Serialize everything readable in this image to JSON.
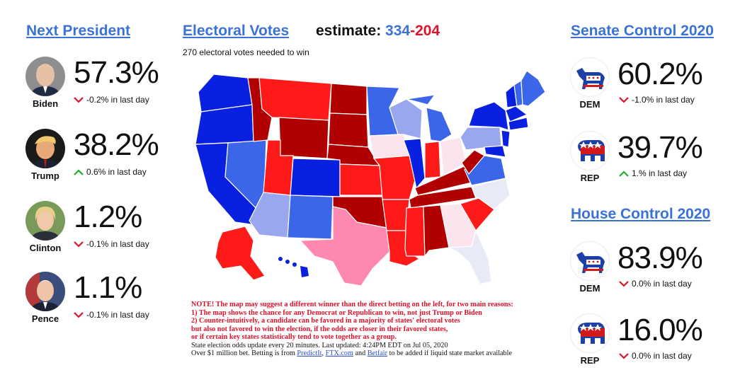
{
  "headers": {
    "next_president": "Next President",
    "electoral_votes": "Electoral Votes",
    "estimate_label": "estimate:",
    "estimate_dem": "334",
    "estimate_dash": "-",
    "estimate_rep": "204",
    "needed": "270 electoral votes needed to win",
    "senate": "Senate Control 2020",
    "house": "House Control 2020"
  },
  "candidates": [
    {
      "name": "Biden",
      "pct": "57.3%",
      "change": "-0.2% in last day",
      "direction": "down"
    },
    {
      "name": "Trump",
      "pct": "38.2%",
      "change": "0.6% in last day",
      "direction": "up"
    },
    {
      "name": "Clinton",
      "pct": "1.2%",
      "change": "-0.1% in last day",
      "direction": "down"
    },
    {
      "name": "Pence",
      "pct": "1.1%",
      "change": "-0.1% in last day",
      "direction": "down"
    }
  ],
  "senate": [
    {
      "party": "DEM",
      "pct": "60.2%",
      "change": "-1.0% in last day",
      "direction": "down"
    },
    {
      "party": "REP",
      "pct": "39.7%",
      "change": "1.% in last day",
      "direction": "up"
    }
  ],
  "house": [
    {
      "party": "DEM",
      "pct": "83.9%",
      "change": "0.0% in last day",
      "direction": "down"
    },
    {
      "party": "REP",
      "pct": "16.0%",
      "change": "0.0% in last day",
      "direction": "down"
    }
  ],
  "note": {
    "line1": "NOTE! The map may suggest a different winner than the direct betting on the left, for two main reasons:",
    "line2": "1) The map shows the chance for any Democrat or Republican to win, not just Trump or Biden",
    "line3": "2) Counter-intuitively, a candidate can be favored in a majority of states' electoral votes",
    "line4": "but also not favored to win the election, if the odds are closer in their favored states,",
    "line5": "or if certain key states statistically tend to vote together as a group.",
    "update": "State election odds update every 20 minutes. Last updated: 4:24PM EDT on Jul 05, 2020",
    "bet_prefix": "Over $1 million bet. Betting is from ",
    "link_predictit": "PredictIt",
    "sep": ", ",
    "link_ftx": "FTX.com",
    "and": " and ",
    "link_betfair": "Betfair",
    "bet_suffix": " to be added if liquid state market available"
  },
  "colors": {
    "link": "#3b72d6",
    "dem_arrow_up": "#1fae2a",
    "down_arrow": "#e0112a",
    "strong_dem": "#0a20e0",
    "likely_dem": "#3c66ea",
    "lean_dem": "#9aa7ee",
    "tilt_dem": "#e8ebf7",
    "strong_rep": "#b00000",
    "likely_rep": "#ff1a1a",
    "lean_rep": "#ff88b0",
    "tilt_rep": "#fce4ef"
  }
}
